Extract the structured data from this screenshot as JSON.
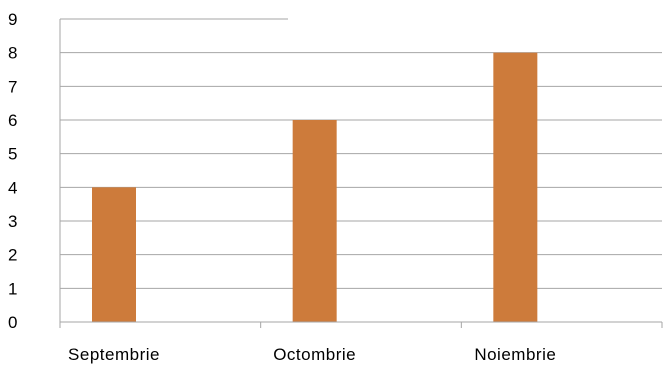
{
  "chart_data": {
    "type": "bar",
    "categories": [
      "Septembrie",
      "Octombrie",
      "Noiembrie"
    ],
    "series": [
      {
        "values": [
          4,
          6,
          8
        ]
      }
    ],
    "ylim": [
      0,
      9
    ],
    "yticks": [
      "0",
      "1",
      "2",
      "3",
      "4",
      "5",
      "6",
      "7",
      "8",
      "9"
    ],
    "grid": true,
    "legend": "none",
    "colors": {
      "bar": "#CD7B3B",
      "grid": "#A6A6A6",
      "axis": "#A6A6A6"
    }
  }
}
